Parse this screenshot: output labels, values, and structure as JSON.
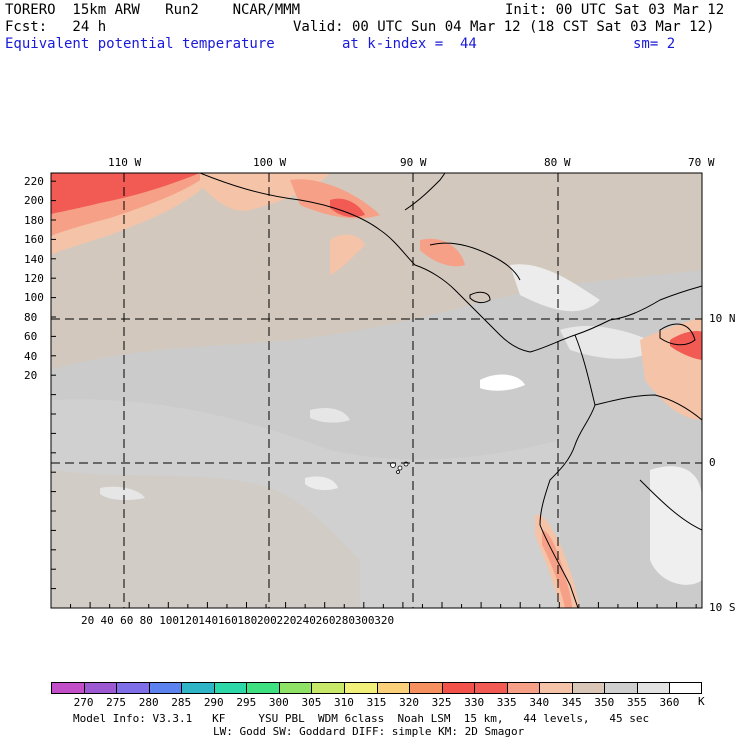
{
  "header": {
    "line1_left": "TORERO  15km ARW   Run2    NCAR/MMM",
    "line1_right": "Init: 00 UTC Sat 03 Mar 12",
    "line2_left": "Fcst:   24 h",
    "line2_right": "Valid: 00 UTC Sun 04 Mar 12 (18 CST Sat 03 Mar 12)",
    "field_name": "Equivalent potential temperature",
    "level": "at k-index =  44",
    "smoothing": "sm= 2"
  },
  "map": {
    "top_lon_labels": [
      "110 W",
      "100 W",
      "90 W",
      "80 W",
      "70 W"
    ],
    "right_lat_labels": [
      "10 N",
      "0",
      "10 S"
    ],
    "left_y_ticks": [
      "220",
      "200",
      "180",
      "160",
      "140",
      "120",
      "100",
      "80",
      "60",
      "40",
      "20"
    ],
    "bottom_x_ticks": [
      "20",
      "40",
      "60",
      "80",
      "100",
      "120",
      "140",
      "160",
      "180",
      "200",
      "220",
      "240",
      "260",
      "280",
      "300",
      "320"
    ]
  },
  "colorbar": {
    "labels": [
      "270",
      "275",
      "280",
      "285",
      "290",
      "295",
      "300",
      "305",
      "310",
      "315",
      "320",
      "325",
      "330",
      "335",
      "340",
      "345",
      "350",
      "355",
      "360"
    ],
    "unit": "K",
    "colors": [
      "#c24fc8",
      "#9c59d1",
      "#7e6ee8",
      "#5b82ee",
      "#2fb5c6",
      "#2cd8a8",
      "#3ee080",
      "#8ee266",
      "#c8e86a",
      "#f0f07a",
      "#fbd07a",
      "#f6905e",
      "#f2524a",
      "#f25a54",
      "#f6a088",
      "#f5c4a8",
      "#d9c6b6",
      "#cfcfcf",
      "#e3e3e3",
      "#ffffff"
    ]
  },
  "footer": {
    "line1": "Model Info: V3.3.1   KF     YSU PBL  WDM 6class  Noah LSM  15 km,   44 levels,   45 sec",
    "line2": "LW: Godd SW: Goddard DIFF: simple KM: 2D Smagor"
  }
}
